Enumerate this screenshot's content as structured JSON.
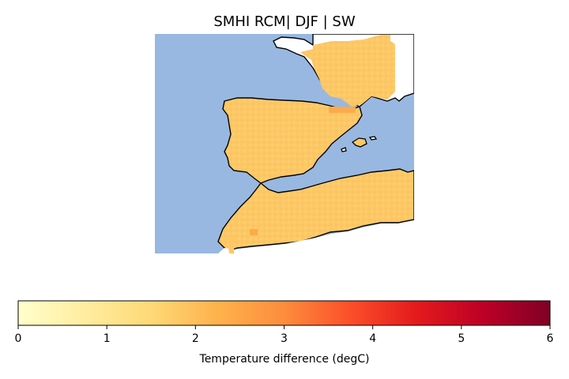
{
  "title": "SMHI RCM| DJF | SW",
  "map": {
    "ocean_color": "#98b8e2",
    "land_color": "#ffffff",
    "coastline_color": "#000000",
    "field_description_fill": "#fcc564"
  },
  "colorbar": {
    "colormap": "YlOrRd",
    "label": "Temperature difference (degC)",
    "range": [
      0,
      6
    ],
    "ticks": [
      "0",
      "1",
      "2",
      "3",
      "4",
      "5",
      "6"
    ],
    "stops": [
      "#ffffcc",
      "#ffeda0",
      "#fed976",
      "#feb24c",
      "#fd8d3c",
      "#fc4e2a",
      "#e31a1c",
      "#bd0026",
      "#800026"
    ]
  }
}
